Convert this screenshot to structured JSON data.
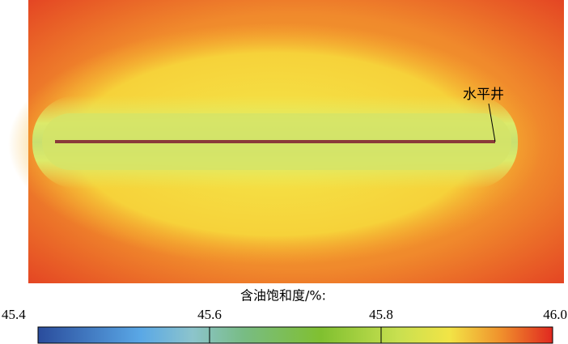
{
  "chart_data": {
    "type": "field",
    "annotation": "水平井",
    "colorbar_title": "含油饱和度/%:",
    "clim": [
      45.4,
      46
    ],
    "cticks": [
      45.4,
      45.6,
      45.8,
      {
        "value": 46,
        "label": "46.0"
      }
    ]
  }
}
